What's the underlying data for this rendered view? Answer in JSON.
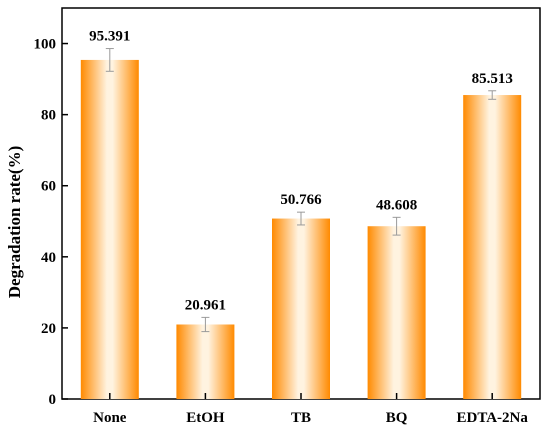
{
  "chart_data": {
    "type": "bar",
    "title": "",
    "xlabel": "",
    "ylabel": "Degradation rate(%)",
    "categories": [
      "None",
      "EtOH",
      "TB",
      "BQ",
      "EDTA-2Na"
    ],
    "values": [
      95.391,
      20.961,
      50.766,
      48.608,
      85.513
    ],
    "value_labels": [
      "95.391",
      "20.961",
      "50.766",
      "48.608",
      "85.513"
    ],
    "errors": [
      3.2,
      2.0,
      1.8,
      2.5,
      1.2
    ],
    "ylim": [
      0,
      110
    ],
    "yticks": [
      0,
      20,
      40,
      60,
      80,
      100
    ],
    "ytick_labels": [
      "0",
      "20",
      "40",
      "60",
      "80",
      "100"
    ],
    "grid": false,
    "bar_color_edge": "#ff8a00",
    "bar_color_center": "#fff3e0"
  }
}
